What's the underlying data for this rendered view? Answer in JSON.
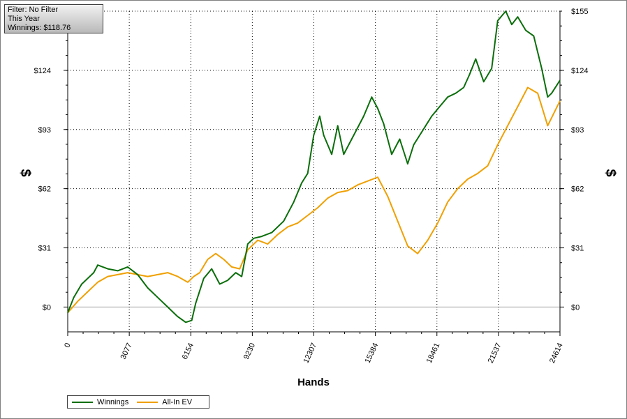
{
  "info_box": {
    "filter": "Filter: No Filter",
    "period": "This Year",
    "winnings": "Winnings: $118.76"
  },
  "colors": {
    "winnings": "#0a6e0a",
    "all_in_ev": "#f0a000",
    "grid": "#000000",
    "zero_line": "#a0a0a0"
  },
  "legend": {
    "position": "bottom-left",
    "items": [
      {
        "label": "Winnings",
        "color": "#0a6e0a"
      },
      {
        "label": "All-In EV",
        "color": "#f0a000"
      }
    ]
  },
  "chart_data": {
    "type": "line",
    "xlabel": "Hands",
    "ylabel": "$",
    "xlim": [
      0,
      24614
    ],
    "ylim": [
      -13,
      155
    ],
    "x_ticks": [
      0,
      3077,
      6154,
      9230,
      12307,
      15384,
      18461,
      21537,
      24614
    ],
    "x_tick_labels": [
      "0",
      "3077",
      "6154",
      "9230",
      "12307",
      "15384",
      "18461",
      "21537",
      "24614"
    ],
    "y_ticks": [
      0,
      31,
      62,
      93,
      124,
      155
    ],
    "y_tick_labels": [
      "$0",
      "$31",
      "$62",
      "$93",
      "$124",
      "$155"
    ],
    "grid": true,
    "series": [
      {
        "name": "Winnings",
        "color": "#0a6e0a",
        "x": [
          0,
          300,
          700,
          1000,
          1300,
          1500,
          2000,
          2500,
          3000,
          3500,
          4000,
          4500,
          5000,
          5500,
          5900,
          6200,
          6400,
          6800,
          7200,
          7600,
          8000,
          8400,
          8700,
          9000,
          9300,
          9700,
          10200,
          10800,
          11300,
          11700,
          12000,
          12300,
          12600,
          12800,
          13200,
          13500,
          13800,
          14300,
          14800,
          15200,
          15500,
          15800,
          16200,
          16600,
          17000,
          17300,
          17600,
          17900,
          18200,
          18600,
          19000,
          19400,
          19800,
          20100,
          20400,
          20800,
          21200,
          21500,
          21900,
          22200,
          22500,
          22900,
          23300,
          23700,
          24000,
          24200,
          24614
        ],
        "y": [
          -3,
          5,
          12,
          15,
          18,
          22,
          20,
          19,
          21,
          17,
          10,
          5,
          0,
          -5,
          -8,
          -7,
          2,
          15,
          20,
          12,
          14,
          18,
          16,
          33,
          36,
          37,
          39,
          45,
          55,
          65,
          70,
          90,
          100,
          90,
          80,
          95,
          80,
          90,
          100,
          110,
          104,
          96,
          80,
          88,
          75,
          85,
          90,
          95,
          100,
          105,
          110,
          112,
          115,
          122,
          130,
          118,
          125,
          150,
          155,
          148,
          152,
          145,
          142,
          125,
          110,
          112,
          118.76
        ]
      },
      {
        "name": "All-In EV",
        "color": "#f0a000",
        "x": [
          0,
          500,
          1000,
          1500,
          2000,
          2500,
          3000,
          3500,
          4000,
          4500,
          5000,
          5500,
          6000,
          6300,
          6600,
          7000,
          7400,
          7800,
          8200,
          8600,
          9000,
          9500,
          10000,
          10500,
          11000,
          11500,
          12000,
          12500,
          13000,
          13500,
          14000,
          14500,
          15000,
          15500,
          16000,
          16500,
          17000,
          17500,
          18000,
          18500,
          19000,
          19500,
          20000,
          20500,
          21000,
          21500,
          22000,
          22500,
          23000,
          23500,
          24000,
          24614
        ],
        "y": [
          -3,
          3,
          8,
          13,
          16,
          17,
          18,
          17,
          16,
          17,
          18,
          16,
          13,
          16,
          18,
          25,
          28,
          25,
          21,
          20,
          30,
          35,
          33,
          38,
          42,
          44,
          48,
          52,
          57,
          60,
          61,
          64,
          66,
          68,
          58,
          45,
          32,
          28,
          35,
          44,
          55,
          62,
          67,
          70,
          74,
          85,
          95,
          105,
          115,
          112,
          95,
          108
        ]
      }
    ]
  }
}
